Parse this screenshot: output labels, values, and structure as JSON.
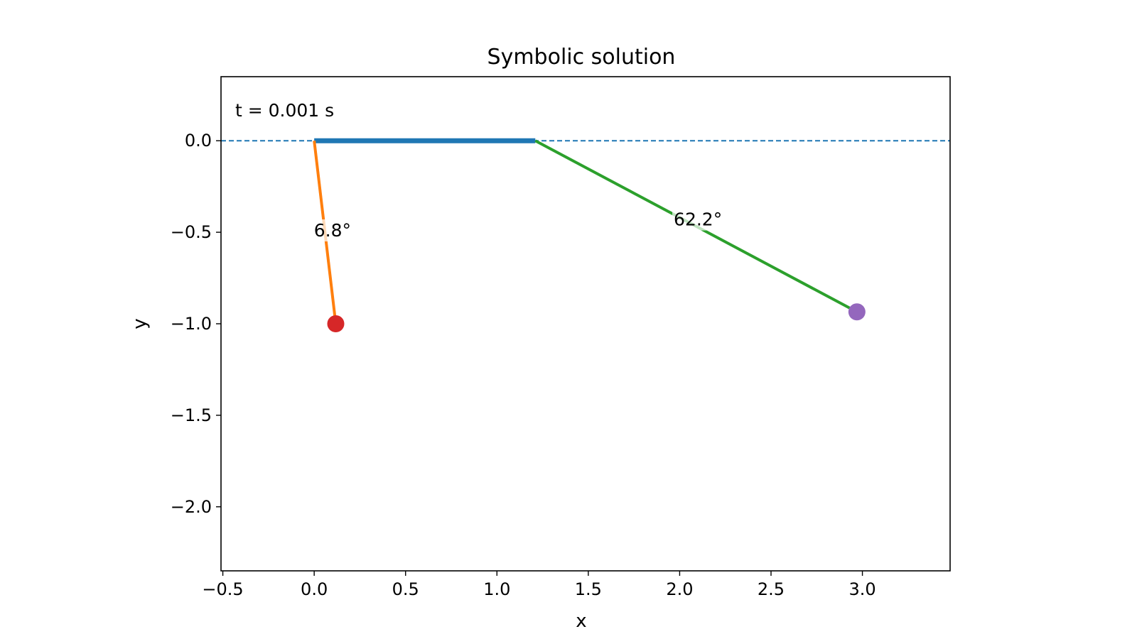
{
  "chart_data": {
    "type": "line",
    "title": "Symbolic solution",
    "xlabel": "x",
    "ylabel": "y",
    "xlim": [
      -0.51,
      3.48
    ],
    "ylim": [
      -2.35,
      0.35
    ],
    "xticks": [
      -0.5,
      0.0,
      0.5,
      1.0,
      1.5,
      2.0,
      2.5,
      3.0
    ],
    "xtick_labels": [
      "−0.5",
      "0.0",
      "0.5",
      "1.0",
      "1.5",
      "2.0",
      "2.5",
      "3.0"
    ],
    "yticks": [
      0.0,
      -0.5,
      -1.0,
      -1.5,
      -2.0
    ],
    "ytick_labels": [
      "0.0",
      "−0.5",
      "−1.0",
      "−1.5",
      "−2.0"
    ],
    "grid": false,
    "reference_line": {
      "y": 0.0,
      "style": "dashed",
      "color": "#1f77b4"
    },
    "time_label": "t = 0.001 s",
    "series": [
      {
        "role": "cart",
        "x": [
          0.0,
          1.21
        ],
        "y": [
          0.0,
          0.0
        ],
        "color": "#1f77b4"
      },
      {
        "role": "pendulum-1-rod",
        "x": [
          0.0,
          0.118
        ],
        "y": [
          0.0,
          -1.0
        ],
        "color": "#ff7f0e"
      },
      {
        "role": "pendulum-2-rod",
        "x": [
          1.21,
          2.97
        ],
        "y": [
          0.0,
          -0.935
        ],
        "color": "#2ca02c"
      }
    ],
    "bobs": [
      {
        "x": 0.118,
        "y": -1.0,
        "color": "#d62728"
      },
      {
        "x": 2.97,
        "y": -0.935,
        "color": "#9467bd"
      }
    ],
    "annotations": [
      {
        "text": "6.8°",
        "x": 0.1,
        "y": -0.49
      },
      {
        "text": "62.2°",
        "x": 2.1,
        "y": -0.43
      }
    ]
  }
}
